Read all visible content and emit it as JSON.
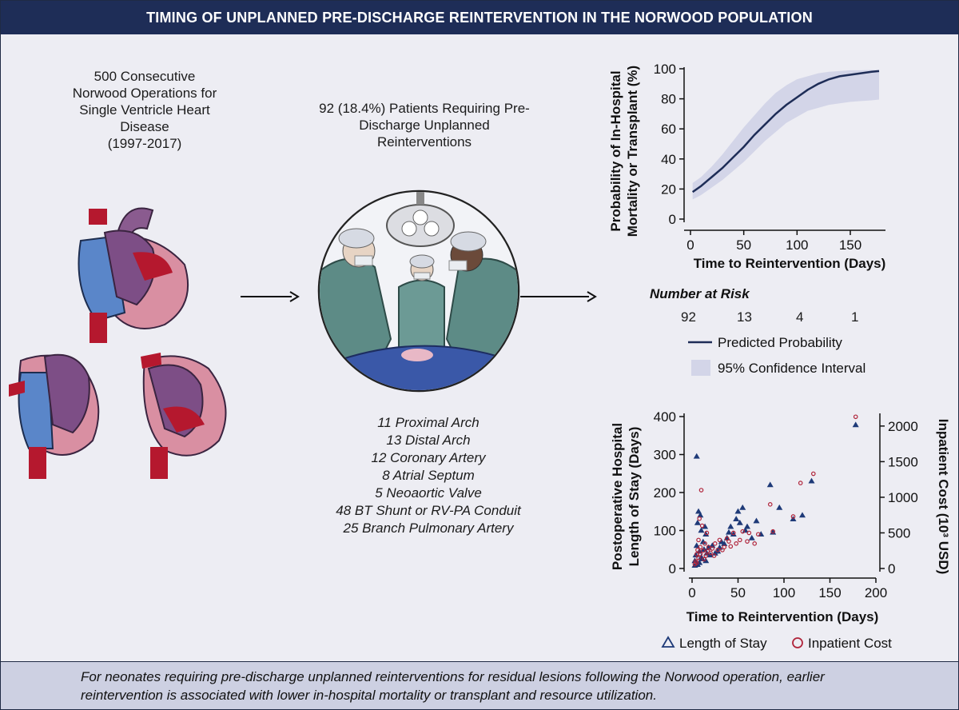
{
  "title": "TIMING OF UNPLANNED PRE-DISCHARGE REINTERVENTION IN THE NORWOOD POPULATION",
  "cohort": {
    "lines": [
      "500 Consecutive",
      "Norwood Operations for",
      "Single Ventricle Heart",
      "Disease",
      "(1997-2017)"
    ]
  },
  "reintervention": {
    "lines": [
      "92 (18.4%) Patients Requiring Pre-",
      "Discharge Unplanned",
      "Reinterventions"
    ]
  },
  "lesions": [
    "11 Proximal Arch",
    "13 Distal Arch",
    "12 Coronary Artery",
    "8 Atrial Septum",
    "5 Neoaortic Valve",
    "48 BT Shunt or RV-PA Conduit",
    "25 Branch Pulmonary Artery"
  ],
  "number_at_risk": {
    "label": "Number at Risk",
    "values": [
      "92",
      "13",
      "4",
      "1"
    ]
  },
  "legend_top": {
    "predicted": "Predicted Probability",
    "ci": "95% Confidence Interval"
  },
  "legend_bottom": {
    "los": "Length of Stay",
    "cost": "Inpatient Cost"
  },
  "footer": "For neonates requiring pre-discharge unplanned reinterventions for residual lesions following the Norwood operation, earlier reintervention is associated with lower in-hospital mortality or transplant and resource utilization.",
  "colors": {
    "title_bg": "#1e2d57",
    "panel_bg": "#ededf3",
    "footer_bg": "#cdd0e2",
    "curve": "#1e2d57",
    "ci_band": "#d3d5e8",
    "los_marker": "#1e3a78",
    "cost_marker": "#b0243a"
  },
  "chart_data": [
    {
      "type": "line",
      "title": "",
      "xlabel": "Time to Reintervention (Days)",
      "ylabel_lines": [
        "Probability of In-Hospital",
        "Mortality or Transplant (%)"
      ],
      "xlim": [
        0,
        180
      ],
      "ylim": [
        0,
        100
      ],
      "xticks": [
        "0",
        "50",
        "100",
        "150"
      ],
      "yticks": [
        "0",
        "20",
        "40",
        "60",
        "80",
        "100"
      ],
      "x": [
        2,
        10,
        20,
        30,
        40,
        50,
        60,
        70,
        80,
        90,
        100,
        110,
        120,
        130,
        140,
        150,
        160,
        170,
        177
      ],
      "series": [
        {
          "name": "Predicted Probability",
          "values": [
            18,
            22,
            28,
            34,
            41,
            48,
            56,
            63,
            70,
            76,
            81,
            86,
            90,
            93,
            95,
            96,
            97,
            98,
            98.5
          ]
        },
        {
          "name": "95% CI upper",
          "values": [
            24,
            28,
            35,
            43,
            52,
            61,
            69,
            77,
            84,
            89,
            93,
            95,
            97,
            98,
            98.5,
            99,
            99,
            99.2,
            99.3
          ]
        },
        {
          "name": "95% CI lower",
          "values": [
            13,
            16,
            21,
            26,
            32,
            38,
            45,
            52,
            58,
            64,
            68,
            72,
            74,
            76,
            77,
            78,
            78.5,
            79,
            79.5
          ]
        }
      ]
    },
    {
      "type": "scatter",
      "title": "",
      "xlabel": "Time to Reintervention (Days)",
      "ylabel_lines": [
        "Postoperative Hospital",
        "Length of Stay (Days)"
      ],
      "y2label": "Inpatient Cost (10³ USD)",
      "xlim": [
        0,
        200
      ],
      "ylim": [
        0,
        400
      ],
      "y2lim": [
        0,
        2133
      ],
      "xticks": [
        "0",
        "50",
        "100",
        "150",
        "200"
      ],
      "yticks": [
        "0",
        "100",
        "200",
        "300",
        "400"
      ],
      "y2ticks": [
        "0",
        "500",
        "1000",
        "1500",
        "2000"
      ],
      "series": [
        {
          "name": "Length of Stay",
          "marker": "triangle",
          "points": [
            [
              3,
              20
            ],
            [
              4,
              35
            ],
            [
              5,
              60
            ],
            [
              6,
              120
            ],
            [
              7,
              150
            ],
            [
              5,
              295
            ],
            [
              8,
              45
            ],
            [
              9,
              140
            ],
            [
              10,
              100
            ],
            [
              10,
              30
            ],
            [
              12,
              70
            ],
            [
              13,
              50
            ],
            [
              14,
              110
            ],
            [
              15,
              90
            ],
            [
              16,
              40
            ],
            [
              18,
              55
            ],
            [
              20,
              35
            ],
            [
              22,
              60
            ],
            [
              25,
              40
            ],
            [
              28,
              45
            ],
            [
              30,
              55
            ],
            [
              32,
              70
            ],
            [
              35,
              65
            ],
            [
              38,
              80
            ],
            [
              40,
              95
            ],
            [
              42,
              110
            ],
            [
              45,
              90
            ],
            [
              48,
              130
            ],
            [
              50,
              150
            ],
            [
              52,
              120
            ],
            [
              55,
              160
            ],
            [
              58,
              100
            ],
            [
              60,
              110
            ],
            [
              65,
              80
            ],
            [
              70,
              125
            ],
            [
              75,
              90
            ],
            [
              85,
              220
            ],
            [
              88,
              95
            ],
            [
              95,
              160
            ],
            [
              110,
              130
            ],
            [
              120,
              140
            ],
            [
              130,
              230
            ],
            [
              178,
              378
            ],
            [
              6,
              10
            ],
            [
              8,
              15
            ],
            [
              11,
              25
            ],
            [
              15,
              20
            ],
            [
              3,
              8
            ]
          ]
        },
        {
          "name": "Inpatient Cost",
          "marker": "circle",
          "points": [
            [
              3,
              60
            ],
            [
              4,
              100
            ],
            [
              5,
              200
            ],
            [
              6,
              260
            ],
            [
              7,
              400
            ],
            [
              8,
              700
            ],
            [
              9,
              300
            ],
            [
              10,
              1100
            ],
            [
              11,
              600
            ],
            [
              12,
              250
            ],
            [
              14,
              350
            ],
            [
              15,
              180
            ],
            [
              16,
              500
            ],
            [
              18,
              300
            ],
            [
              20,
              220
            ],
            [
              22,
              280
            ],
            [
              25,
              350
            ],
            [
              28,
              260
            ],
            [
              30,
              400
            ],
            [
              35,
              300
            ],
            [
              38,
              420
            ],
            [
              40,
              380
            ],
            [
              45,
              500
            ],
            [
              48,
              350
            ],
            [
              52,
              400
            ],
            [
              55,
              520
            ],
            [
              60,
              380
            ],
            [
              62,
              500
            ],
            [
              68,
              350
            ],
            [
              72,
              480
            ],
            [
              85,
              900
            ],
            [
              88,
              520
            ],
            [
              110,
              730
            ],
            [
              118,
              1200
            ],
            [
              132,
              1330
            ],
            [
              178,
              2130
            ],
            [
              5,
              80
            ],
            [
              7,
              150
            ],
            [
              9,
              200
            ],
            [
              13,
              130
            ],
            [
              17,
              240
            ],
            [
              24,
              180
            ],
            [
              33,
              260
            ],
            [
              42,
              310
            ]
          ]
        }
      ]
    }
  ]
}
